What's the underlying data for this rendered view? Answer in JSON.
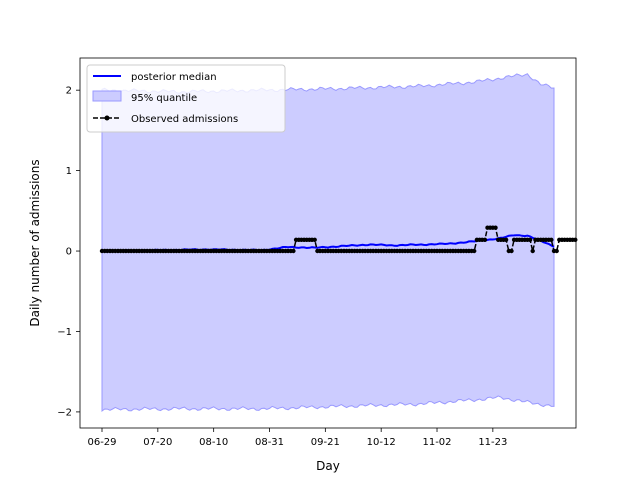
{
  "chart_data": {
    "type": "line",
    "xlabel": "Day",
    "ylabel": "Daily number of admissions",
    "x_ticks": [
      "06-29",
      "07-20",
      "08-10",
      "08-31",
      "09-21",
      "10-12",
      "11-02",
      "11-23"
    ],
    "y_ticks": [
      -2,
      -1,
      0,
      1,
      2
    ],
    "ylim": [
      -2.2,
      2.4
    ],
    "n_days": 171,
    "legend_position": "top-left",
    "colors": {
      "median": "#0000ff",
      "band": "#ccccff",
      "band_edge": "#9999ff",
      "observed": "#000000"
    },
    "series": [
      {
        "name": "posterior median",
        "kind": "line",
        "points": [
          [
            0,
            0.0
          ],
          [
            20,
            0.01
          ],
          [
            40,
            0.02
          ],
          [
            60,
            0.01
          ],
          [
            70,
            0.05
          ],
          [
            80,
            0.04
          ],
          [
            90,
            0.06
          ],
          [
            100,
            0.08
          ],
          [
            110,
            0.07
          ],
          [
            120,
            0.08
          ],
          [
            130,
            0.09
          ],
          [
            140,
            0.12
          ],
          [
            150,
            0.16
          ],
          [
            155,
            0.2
          ],
          [
            160,
            0.19
          ],
          [
            164,
            0.14
          ],
          [
            170,
            0.06
          ]
        ]
      },
      {
        "name": "95% quantile",
        "kind": "band",
        "upper": [
          [
            0,
            2.0
          ],
          [
            30,
            1.98
          ],
          [
            60,
            2.0
          ],
          [
            90,
            2.02
          ],
          [
            120,
            2.05
          ],
          [
            140,
            2.1
          ],
          [
            150,
            2.15
          ],
          [
            160,
            2.2
          ],
          [
            165,
            2.07
          ],
          [
            170,
            2.03
          ]
        ],
        "lower": [
          [
            0,
            -1.97
          ],
          [
            30,
            -1.96
          ],
          [
            60,
            -1.96
          ],
          [
            90,
            -1.93
          ],
          [
            120,
            -1.9
          ],
          [
            140,
            -1.85
          ],
          [
            150,
            -1.82
          ],
          [
            160,
            -1.88
          ],
          [
            170,
            -1.93
          ]
        ]
      },
      {
        "name": "Observed admissions",
        "kind": "observed",
        "values": [
          0,
          0,
          0,
          0,
          0,
          0,
          0,
          0,
          0,
          0,
          0,
          0,
          0,
          0,
          0,
          0,
          0,
          0,
          0,
          0,
          0,
          0,
          0,
          0,
          0,
          0,
          0,
          0,
          0,
          0,
          0,
          0,
          0,
          0,
          0,
          0,
          0,
          0,
          0,
          0,
          0,
          0,
          0,
          0,
          0,
          0,
          0,
          0,
          0,
          0,
          0,
          0,
          0,
          0,
          0,
          0,
          0,
          0,
          0,
          0,
          0,
          0,
          0,
          0,
          0,
          0,
          0,
          0,
          0,
          0,
          0,
          0,
          0,
          0.14,
          0.14,
          0.14,
          0.14,
          0.14,
          0.14,
          0.14,
          0.14,
          0,
          0,
          0,
          0,
          0,
          0,
          0,
          0,
          0,
          0,
          0,
          0,
          0,
          0,
          0,
          0,
          0,
          0,
          0,
          0,
          0,
          0,
          0,
          0,
          0,
          0,
          0,
          0,
          0,
          0,
          0,
          0,
          0,
          0,
          0,
          0,
          0,
          0,
          0,
          0,
          0,
          0,
          0,
          0,
          0,
          0,
          0,
          0,
          0,
          0,
          0,
          0,
          0,
          0,
          0,
          0,
          0,
          0,
          0,
          0,
          0.14,
          0.14,
          0.14,
          0.14,
          0.29,
          0.29,
          0.29,
          0.29,
          0.14,
          0.14,
          0.14,
          0.14,
          0,
          0,
          0.14,
          0.14,
          0.14,
          0.14,
          0.14,
          0.14,
          0.14,
          0,
          0.14,
          0.14,
          0.14,
          0.14,
          0.14,
          0.14,
          0.14,
          0,
          0,
          0.14,
          0.14,
          0.14,
          0.14,
          0.14,
          0.14,
          0.14
        ]
      }
    ]
  }
}
